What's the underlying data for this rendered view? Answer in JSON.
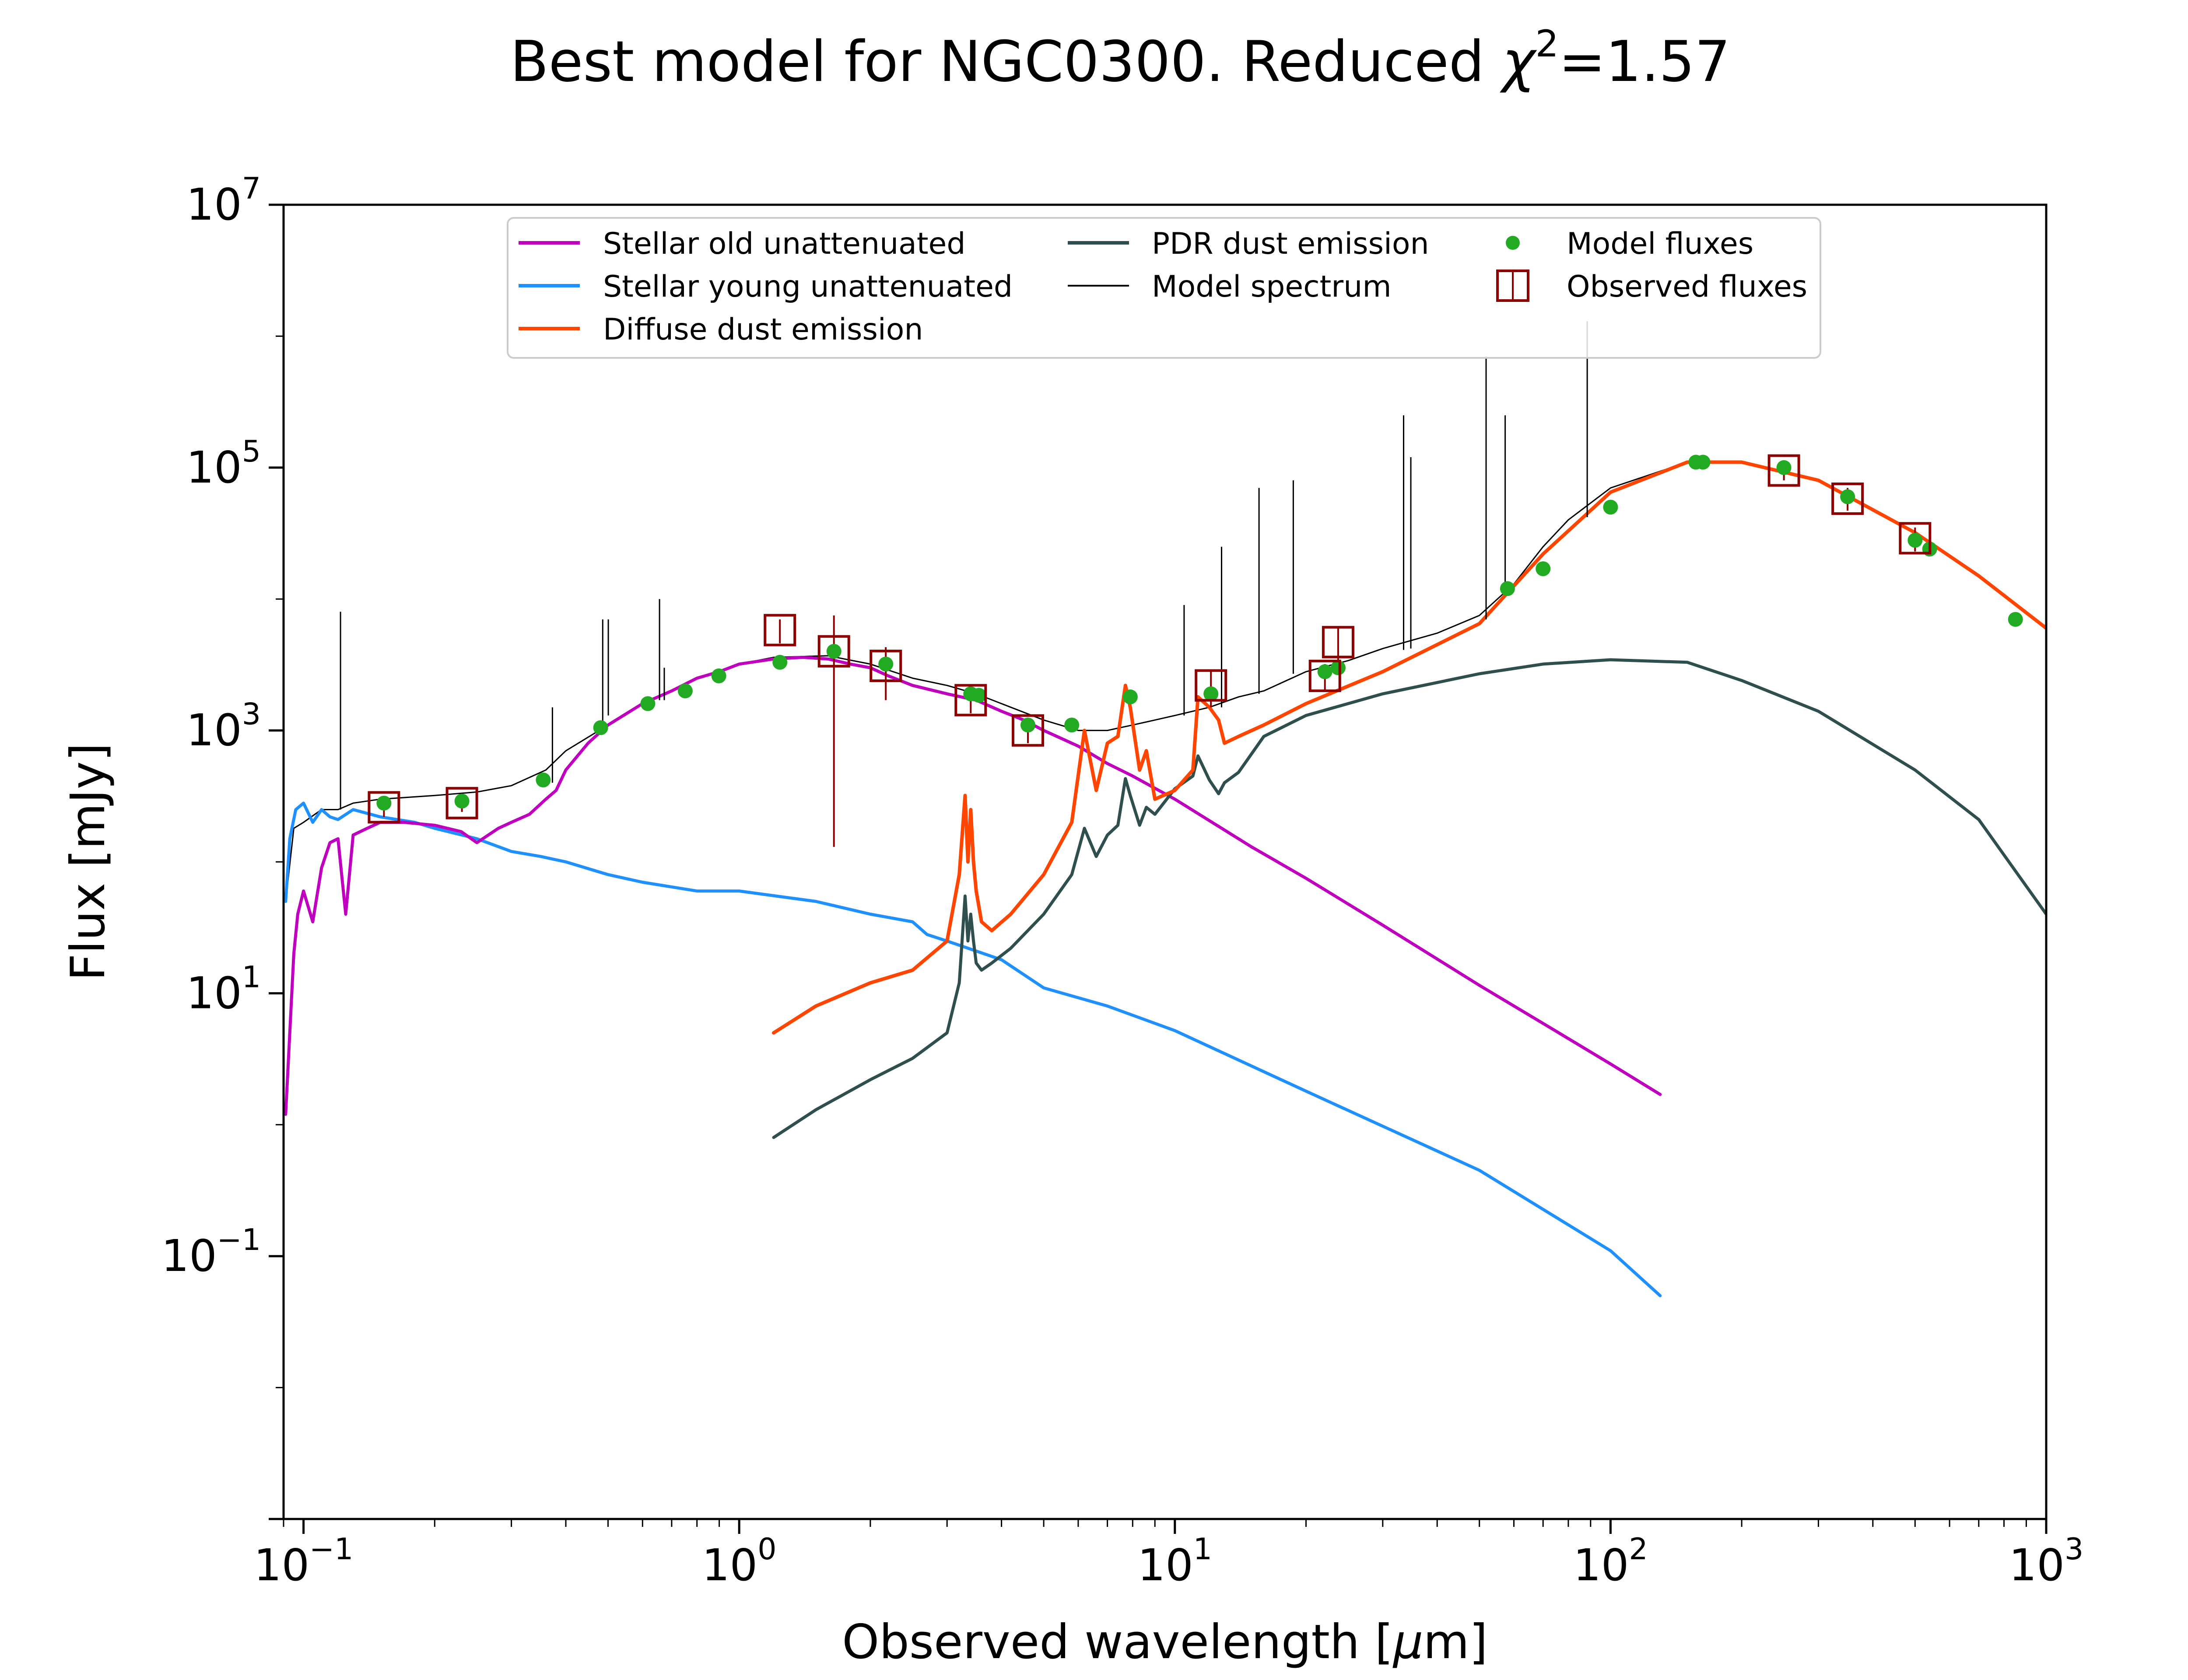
{
  "chart_data": {
    "type": "line",
    "title_prefix": "Best model for NGC0300. Reduced ",
    "title_chi": "χ",
    "title_power": "2",
    "title_suffix": "=1.57",
    "xlabel_prefix": "Observed wavelength [",
    "xlabel_mu": "μ",
    "xlabel_suffix": "m]",
    "ylabel": "Flux [mJy]",
    "xscale": "log",
    "yscale": "log",
    "xlim": [
      0.09,
      1000
    ],
    "ylim": [
      0.001,
      10000000
    ],
    "x_ticks": [
      {
        "base": "10",
        "exp": "−1",
        "value": 0.1
      },
      {
        "base": "10",
        "exp": "0",
        "value": 1
      },
      {
        "base": "10",
        "exp": "1",
        "value": 10
      },
      {
        "base": "10",
        "exp": "2",
        "value": 100
      },
      {
        "base": "10",
        "exp": "3",
        "value": 1000
      }
    ],
    "y_ticks": [
      {
        "base": "10",
        "exp": "−1",
        "value": 0.1
      },
      {
        "base": "10",
        "exp": "1",
        "value": 10
      },
      {
        "base": "10",
        "exp": "3",
        "value": 1000
      },
      {
        "base": "10",
        "exp": "5",
        "value": 100000
      },
      {
        "base": "10",
        "exp": "7",
        "value": 10000000
      }
    ],
    "grid": false,
    "legend_position": "top-center",
    "colors": {
      "stellar_old": "#bf00bf",
      "stellar_young": "#1e90ff",
      "diffuse_dust": "#ff4500",
      "pdr_dust": "#2f4f4f",
      "model_spectrum": "#000000",
      "model_fluxes": "#22aa22",
      "observed_fluxes": "#8b0000"
    },
    "series": [
      {
        "name": "Stellar old unattenuated",
        "key": "stellar_old",
        "x": [
          0.091,
          0.093,
          0.095,
          0.097,
          0.1,
          0.105,
          0.11,
          0.115,
          0.12,
          0.125,
          0.13,
          0.14,
          0.15,
          0.17,
          0.2,
          0.23,
          0.25,
          0.28,
          0.3,
          0.33,
          0.36,
          0.38,
          0.4,
          0.45,
          0.5,
          0.6,
          0.7,
          0.8,
          0.9,
          1.0,
          1.2,
          1.4,
          1.6,
          1.8,
          2.0,
          2.2,
          2.5,
          3.0,
          3.5,
          4.0,
          4.5,
          5,
          6,
          7,
          8,
          10,
          15,
          20,
          30,
          50,
          70,
          100,
          130
        ],
        "y": [
          1.2,
          5,
          20,
          40,
          60,
          35,
          90,
          140,
          150,
          40,
          160,
          180,
          200,
          200,
          190,
          170,
          140,
          180,
          200,
          230,
          300,
          350,
          500,
          800,
          1100,
          1600,
          2000,
          2500,
          2800,
          3200,
          3500,
          3600,
          3500,
          3200,
          3000,
          2600,
          2200,
          1900,
          1700,
          1400,
          1200,
          1000,
          760,
          560,
          450,
          300,
          130,
          75,
          33,
          11.5,
          5.9,
          2.9,
          1.7
        ]
      },
      {
        "name": "Stellar young unattenuated",
        "key": "stellar_young",
        "x": [
          0.091,
          0.093,
          0.096,
          0.1,
          0.105,
          0.11,
          0.115,
          0.12,
          0.13,
          0.15,
          0.18,
          0.2,
          0.25,
          0.3,
          0.35,
          0.4,
          0.5,
          0.6,
          0.8,
          1.0,
          1.5,
          2.0,
          2.5,
          2.7,
          3,
          4,
          5,
          7,
          10,
          20,
          50,
          100,
          130
        ],
        "y": [
          50,
          150,
          250,
          280,
          200,
          250,
          220,
          210,
          250,
          220,
          200,
          180,
          150,
          120,
          110,
          100,
          80,
          70,
          60,
          60,
          50,
          40,
          35,
          28,
          25,
          18,
          11,
          8,
          5.2,
          1.8,
          0.45,
          0.11,
          0.05
        ]
      },
      {
        "name": "Diffuse dust emission",
        "key": "diffuse_dust",
        "x": [
          1.2,
          1.5,
          2,
          2.5,
          3.0,
          3.2,
          3.3,
          3.35,
          3.4,
          3.45,
          3.5,
          3.6,
          3.8,
          4.2,
          5,
          5.8,
          6.2,
          6.6,
          7.0,
          7.4,
          7.7,
          7.9,
          8.3,
          8.6,
          9,
          10,
          11,
          11.3,
          12,
          12.6,
          13,
          14,
          16,
          20,
          30,
          50,
          70,
          100,
          150,
          200,
          300,
          500,
          700,
          1000
        ],
        "y": [
          5,
          8,
          12,
          15,
          25,
          80,
          320,
          100,
          250,
          100,
          60,
          35,
          30,
          40,
          80,
          200,
          1000,
          350,
          800,
          900,
          2200,
          1500,
          500,
          700,
          300,
          350,
          500,
          1800,
          1500,
          1200,
          800,
          900,
          1100,
          1600,
          2800,
          6500,
          22000,
          65000,
          110000,
          110000,
          80000,
          32000,
          15000,
          6000
        ]
      },
      {
        "name": "PDR dust emission",
        "key": "pdr_dust",
        "x": [
          1.2,
          1.5,
          2,
          2.5,
          3.0,
          3.2,
          3.3,
          3.35,
          3.4,
          3.45,
          3.5,
          3.6,
          3.8,
          4.2,
          5,
          5.8,
          6.2,
          6.6,
          7.0,
          7.4,
          7.7,
          7.9,
          8.3,
          8.6,
          9,
          10,
          11,
          11.3,
          12,
          12.6,
          13,
          14,
          16,
          20,
          30,
          50,
          70,
          100,
          150,
          200,
          300,
          500,
          700,
          1000
        ],
        "y": [
          0.8,
          1.3,
          2.2,
          3.2,
          5,
          12,
          55,
          25,
          40,
          25,
          17,
          15,
          17,
          22,
          40,
          80,
          180,
          110,
          160,
          190,
          430,
          320,
          190,
          260,
          230,
          360,
          450,
          640,
          420,
          330,
          400,
          480,
          900,
          1300,
          1900,
          2700,
          3200,
          3450,
          3300,
          2400,
          1400,
          500,
          210,
          40
        ]
      },
      {
        "name": "Model spectrum",
        "key": "model_spectrum",
        "x": [
          0.091,
          0.095,
          0.1,
          0.11,
          0.12,
          0.13,
          0.15,
          0.2,
          0.25,
          0.3,
          0.36,
          0.4,
          0.5,
          0.6,
          0.8,
          1.0,
          1.2,
          1.6,
          2.0,
          2.5,
          3.0,
          3.5,
          4.0,
          5,
          6,
          7,
          8,
          9,
          10,
          12,
          14,
          16,
          20,
          25,
          30,
          40,
          50,
          60,
          70,
          80,
          100,
          150,
          200,
          300,
          500,
          700,
          1000
        ],
        "y": [
          50,
          180,
          200,
          250,
          250,
          280,
          300,
          320,
          340,
          380,
          500,
          700,
          1100,
          1600,
          2500,
          3200,
          3600,
          3700,
          3200,
          2500,
          2200,
          1900,
          1600,
          1200,
          1000,
          1000,
          1100,
          1200,
          1300,
          1500,
          1800,
          2000,
          2800,
          3400,
          4200,
          5500,
          7500,
          13000,
          25000,
          40000,
          70000,
          110000,
          110000,
          80000,
          32000,
          15000,
          6000
        ]
      }
    ],
    "emission_lines": {
      "name": "Model spectrum",
      "x": [
        0.1216,
        0.3727,
        0.4861,
        0.5007,
        0.6563,
        0.6731,
        10.5,
        12.8,
        15.6,
        18.7,
        33.5,
        34.8,
        51.8,
        57.3,
        88.4
      ],
      "y_base": [
        250,
        400,
        1100,
        1300,
        1700,
        1700,
        1300,
        1500,
        1900,
        2700,
        4100,
        4200,
        7000,
        12000,
        42000
      ],
      "y_top": [
        8000,
        1500,
        7000,
        7000,
        10000,
        3000,
        9000,
        25000,
        70000,
        80000,
        250000,
        120000,
        700000,
        250000,
        1300000
      ]
    },
    "model_fluxes": {
      "name": "Model fluxes",
      "x": [
        0.153,
        0.231,
        0.355,
        0.481,
        0.617,
        0.752,
        0.898,
        1.24,
        1.65,
        2.17,
        3.4,
        3.55,
        4.6,
        5.8,
        7.9,
        12.1,
        22.1,
        23.7,
        58,
        70,
        100,
        157,
        163,
        250,
        350,
        500,
        540,
        850
      ],
      "y": [
        280,
        290,
        420,
        1050,
        1600,
        2000,
        2600,
        3300,
        4000,
        3200,
        1900,
        1850,
        1100,
        1100,
        1800,
        1900,
        2800,
        3000,
        12000,
        17000,
        50000,
        110000,
        110000,
        100000,
        60000,
        28000,
        24000,
        7000
      ]
    },
    "observed_fluxes": {
      "name": "Observed fluxes",
      "x": [
        0.153,
        0.231,
        1.24,
        1.65,
        2.17,
        3.4,
        4.6,
        12.1,
        22.1,
        23.7,
        250,
        350,
        500
      ],
      "y": [
        260,
        280,
        5800,
        4000,
        3100,
        1700,
        1000,
        2200,
        2600,
        4700,
        95000,
        58000,
        29000
      ],
      "err_low": [
        220,
        240,
        4600,
        130,
        1700,
        1350,
        800,
        1500,
        2000,
        3200,
        80000,
        47000,
        23000
      ],
      "err_high": [
        300,
        320,
        7000,
        7500,
        4300,
        2100,
        1200,
        2800,
        3200,
        6000,
        110000,
        70000,
        35000
      ]
    }
  }
}
